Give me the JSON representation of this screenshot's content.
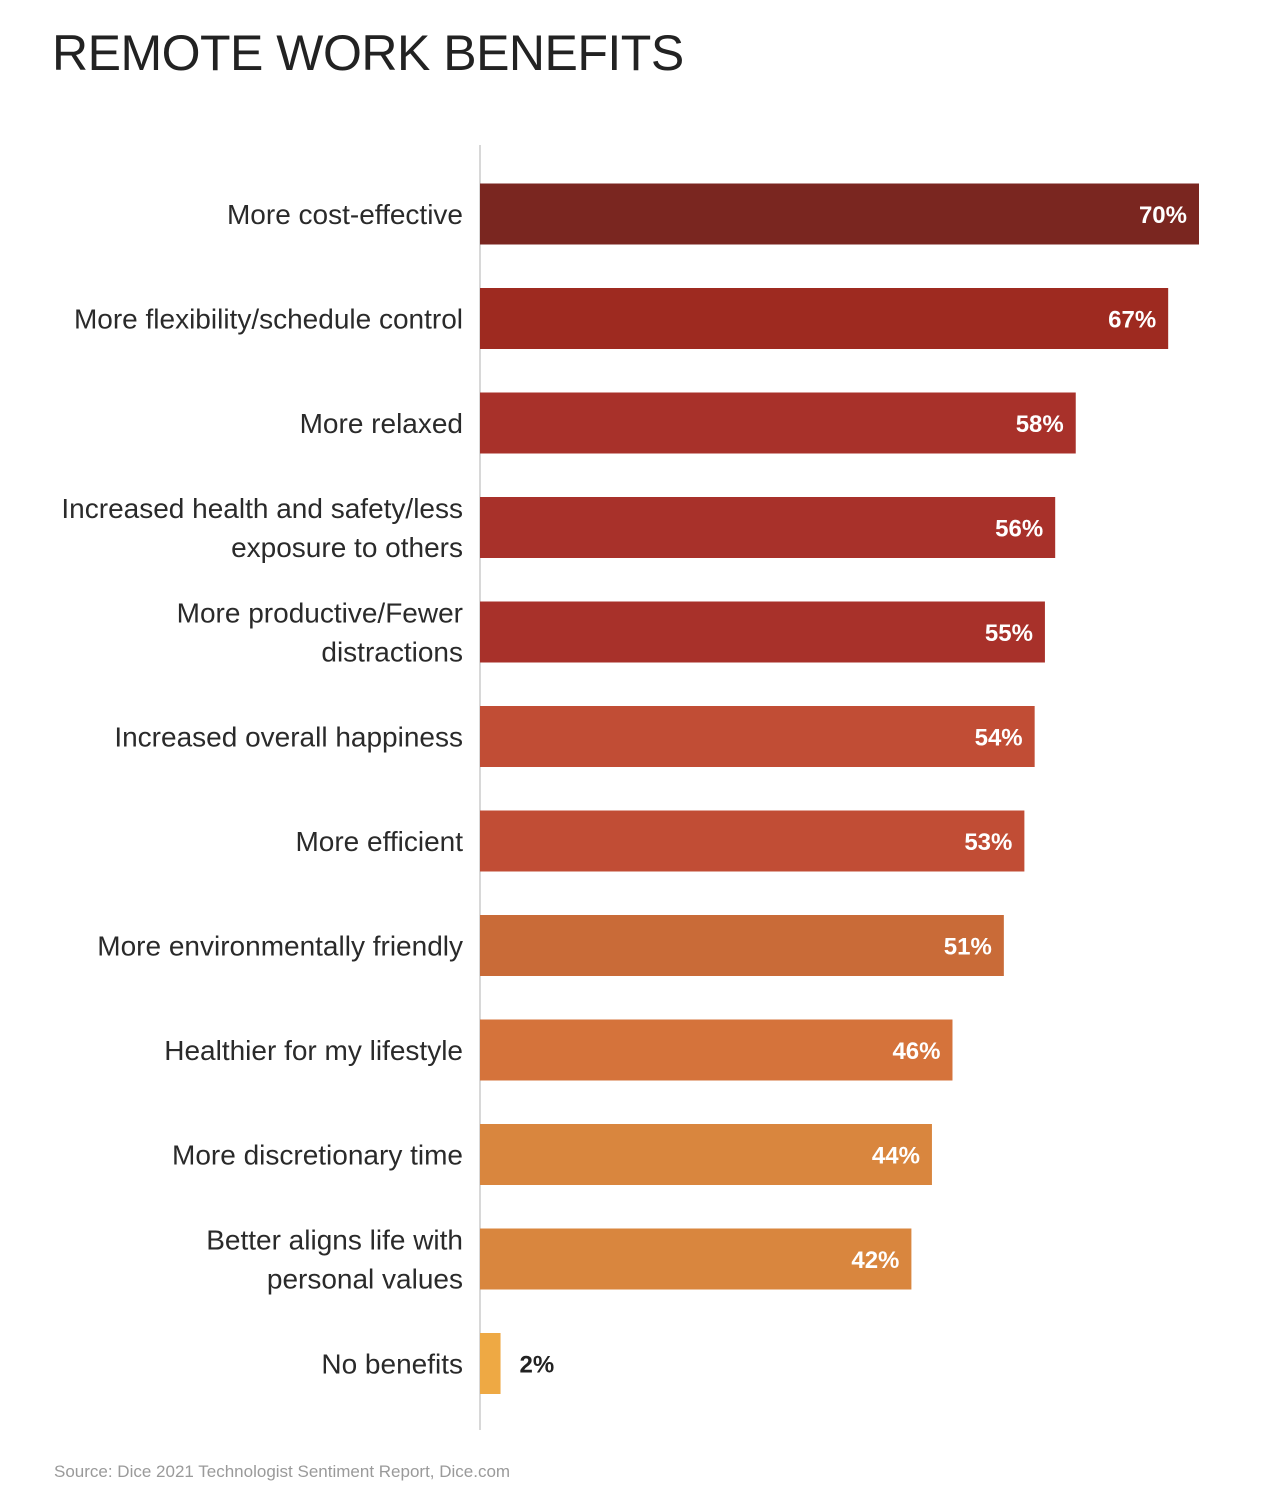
{
  "title": "REMOTE WORK BENEFITS",
  "source": "Source: Dice 2021 Technologist Sentiment Report, Dice.com",
  "chart_data": {
    "type": "bar",
    "orientation": "horizontal",
    "categories": [
      [
        "More cost-effective"
      ],
      [
        "More flexibility/schedule control"
      ],
      [
        "More relaxed"
      ],
      [
        "Increased health and safety/less",
        "exposure to others"
      ],
      [
        "More productive/Fewer",
        "distractions"
      ],
      [
        "Increased overall happiness"
      ],
      [
        "More efficient"
      ],
      [
        "More environmentally friendly"
      ],
      [
        "Healthier for my lifestyle"
      ],
      [
        "More discretionary time"
      ],
      [
        "Better aligns life with",
        "personal values"
      ],
      [
        "No benefits"
      ]
    ],
    "values": [
      70,
      67,
      58,
      56,
      55,
      54,
      53,
      51,
      46,
      44,
      42,
      2
    ],
    "value_labels": [
      "70%",
      "67%",
      "58%",
      "56%",
      "55%",
      "54%",
      "53%",
      "51%",
      "46%",
      "44%",
      "42%",
      "2%"
    ],
    "colors": [
      "#7a2620",
      "#9e2a20",
      "#a8312a",
      "#a8312a",
      "#a8312a",
      "#c14d35",
      "#c14d35",
      "#c96b38",
      "#d5733b",
      "#d9863e",
      "#d9863e",
      "#eea944"
    ],
    "xlim": [
      0,
      70
    ],
    "grid": false,
    "legend": "none",
    "title": "REMOTE WORK BENEFITS",
    "xlabel": "",
    "ylabel": ""
  }
}
